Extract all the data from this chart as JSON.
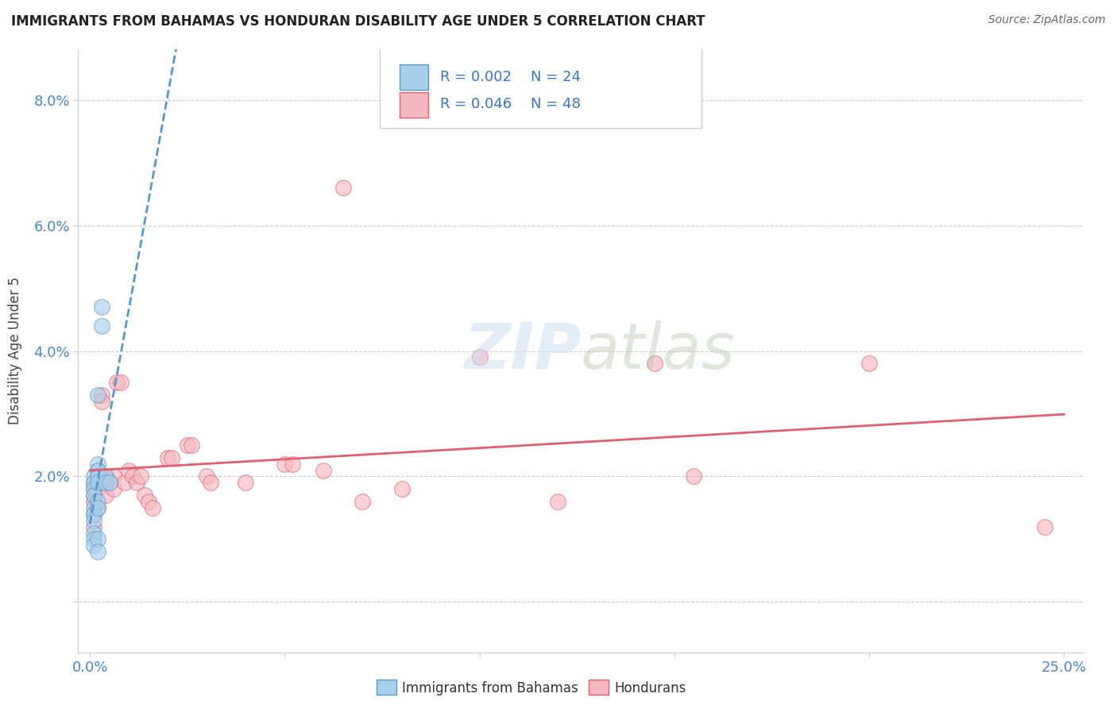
{
  "title": "IMMIGRANTS FROM BAHAMAS VS HONDURAN DISABILITY AGE UNDER 5 CORRELATION CHART",
  "source": "Source: ZipAtlas.com",
  "ylabel_label": "Disability Age Under 5",
  "x_min": 0.0,
  "x_max": 0.25,
  "y_min": -0.008,
  "y_max": 0.088,
  "blue_R": "0.002",
  "blue_N": "24",
  "pink_R": "0.046",
  "pink_N": "48",
  "legend1_label": "Immigrants from Bahamas",
  "legend2_label": "Hondurans",
  "blue_color": "#aacfea",
  "pink_color": "#f5b8c0",
  "blue_line_color": "#5599cc",
  "pink_line_color": "#e06070",
  "blue_x": [
    0.001,
    0.001,
    0.001,
    0.001,
    0.001,
    0.001,
    0.001,
    0.001,
    0.001,
    0.001,
    0.002,
    0.002,
    0.002,
    0.002,
    0.002,
    0.002,
    0.002,
    0.002,
    0.002,
    0.003,
    0.003,
    0.004,
    0.004,
    0.005
  ],
  "blue_y": [
    0.02,
    0.019,
    0.018,
    0.017,
    0.015,
    0.014,
    0.013,
    0.011,
    0.01,
    0.009,
    0.033,
    0.022,
    0.021,
    0.02,
    0.019,
    0.016,
    0.015,
    0.01,
    0.008,
    0.047,
    0.044,
    0.02,
    0.019,
    0.019
  ],
  "pink_x": [
    0.001,
    0.001,
    0.001,
    0.001,
    0.001,
    0.001,
    0.002,
    0.002,
    0.002,
    0.002,
    0.003,
    0.003,
    0.003,
    0.004,
    0.004,
    0.004,
    0.005,
    0.006,
    0.006,
    0.007,
    0.008,
    0.009,
    0.01,
    0.011,
    0.012,
    0.013,
    0.014,
    0.015,
    0.016,
    0.02,
    0.021,
    0.025,
    0.026,
    0.03,
    0.031,
    0.04,
    0.05,
    0.052,
    0.06,
    0.065,
    0.07,
    0.08,
    0.1,
    0.12,
    0.145,
    0.155,
    0.2,
    0.245
  ],
  "pink_y": [
    0.019,
    0.018,
    0.017,
    0.016,
    0.014,
    0.012,
    0.021,
    0.02,
    0.018,
    0.015,
    0.033,
    0.032,
    0.02,
    0.02,
    0.019,
    0.017,
    0.019,
    0.02,
    0.018,
    0.035,
    0.035,
    0.019,
    0.021,
    0.02,
    0.019,
    0.02,
    0.017,
    0.016,
    0.015,
    0.023,
    0.023,
    0.025,
    0.025,
    0.02,
    0.019,
    0.019,
    0.022,
    0.022,
    0.021,
    0.066,
    0.016,
    0.018,
    0.039,
    0.016,
    0.038,
    0.02,
    0.038,
    0.012
  ]
}
